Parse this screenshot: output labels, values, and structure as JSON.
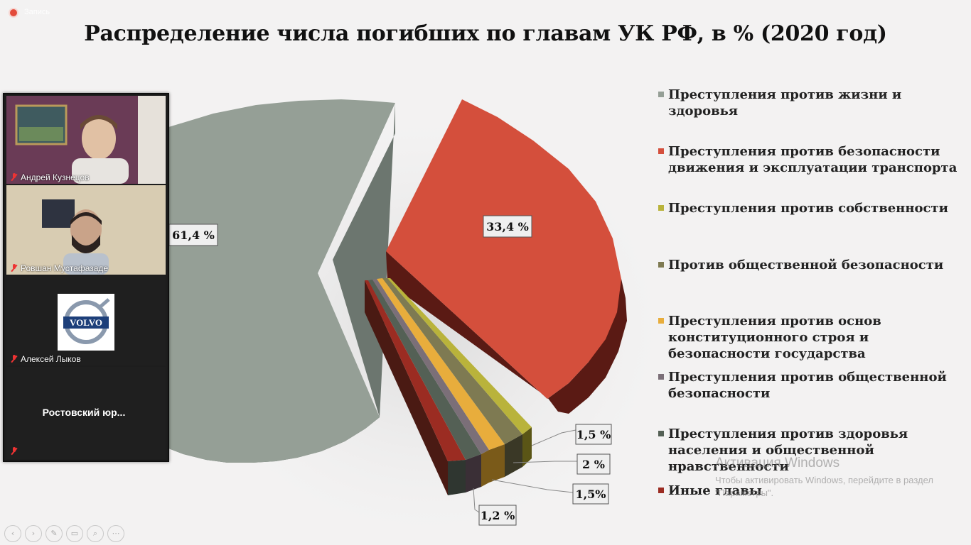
{
  "app": {
    "recording_label": "Запись"
  },
  "slide": {
    "title": "Распределение числа погибших по главам УК РФ, в % (2020 год)",
    "chart_data": {
      "type": "pie",
      "title": "Распределение числа погибших по главам УК РФ, в % (2020 год)",
      "categories": [
        "Преступления против жизни и здоровья",
        "Преступления против безопасности движения и эксплуатации транспорта",
        "Преступления против собственности",
        "Против общественной безопасности",
        "Преступления против основ конституционного строя и безопасности государства",
        "Преступления против общественной безопасности",
        "Преступления против здоровья населения и общественной нравственности",
        "Иные главы"
      ],
      "values": [
        61.4,
        33.4,
        0.5,
        1.5,
        2.0,
        1.5,
        1.2,
        0.5
      ],
      "data_labels": [
        "61,4 %",
        "33,4 %",
        "",
        "1,5 %",
        "2 %",
        "1,5%",
        "1,2 %",
        ""
      ],
      "colors": [
        "#959f96",
        "#d44f3c",
        "#b9b33b",
        "#7e7a52",
        "#e8ad3c",
        "#7b6f78",
        "#546055",
        "#9b2c22"
      ],
      "legend_position": "right",
      "style": "3d exploded"
    }
  },
  "legend": [
    {
      "label": "Преступления против жизни и здоровья",
      "color": "#959f96"
    },
    {
      "label": "Преступления против безопасности движения и эксплуатации транспорта",
      "color": "#d44f3c"
    },
    {
      "label": "Преступления против собственности",
      "color": "#b9b33b"
    },
    {
      "label": "Против общественной безопасности",
      "color": "#7e7a52"
    },
    {
      "label": "Преступления против основ конституционного строя и безопасности государства",
      "color": "#e8ad3c"
    },
    {
      "label": "Преступления против общественной безопасности",
      "color": "#7b6f78"
    },
    {
      "label": "Преступления против здоровья населения и общественной нравственности",
      "color": "#546055"
    },
    {
      "label": "Иные главы",
      "color": "#9b2c22"
    }
  ],
  "participants": [
    {
      "name": "Андрей Кузнецов",
      "muted": true,
      "video": true
    },
    {
      "name": "Ровшан Мустафазаде",
      "muted": true,
      "video": true
    },
    {
      "name": "Алексей Лыков",
      "muted": true,
      "video": false,
      "avatar_logo": "VOLVO"
    },
    {
      "name": "Ростовский  юр...",
      "muted": true,
      "video": false
    }
  ],
  "watermark": {
    "title": "Активация Windows",
    "subtitle": "Чтобы активировать Windows, перейдите в раздел \"Параметры\"."
  },
  "controls": [
    "prev-icon",
    "next-icon",
    "pen-icon",
    "screen-icon",
    "zoom-icon",
    "more-icon"
  ]
}
